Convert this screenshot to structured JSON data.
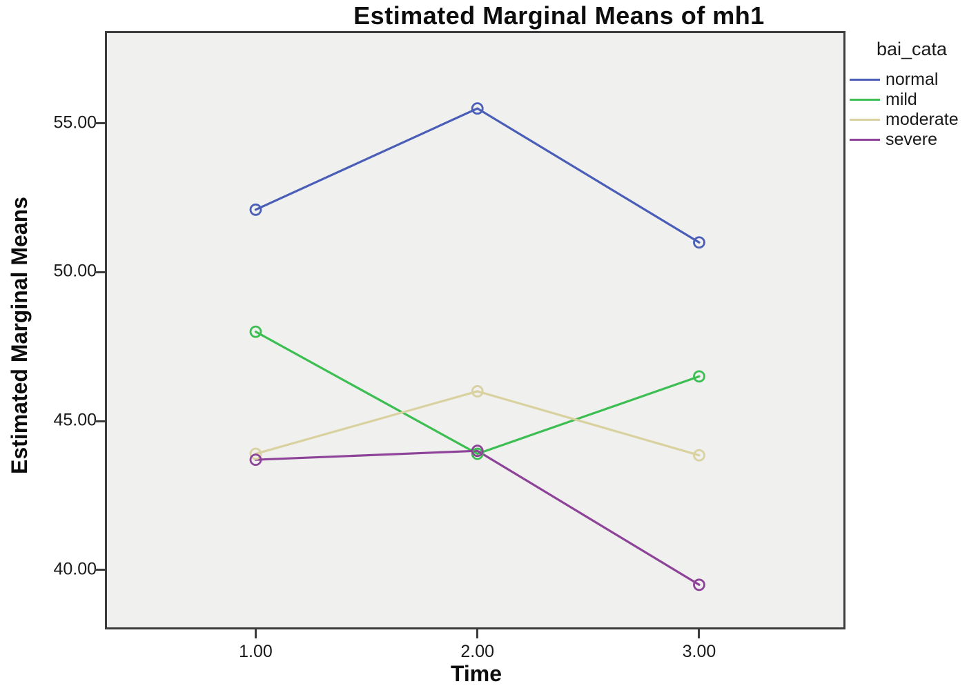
{
  "chart_data": {
    "type": "line",
    "title": "Estimated Marginal Means of mh1",
    "xlabel": "Time",
    "ylabel": "Estimated Marginal Means",
    "legend_title": "bai_cata",
    "legend_position": "right-top-outside",
    "grid": false,
    "marker": "open-circle",
    "x": [
      1.0,
      2.0,
      3.0
    ],
    "x_tick_labels": [
      "1.00",
      "2.00",
      "3.00"
    ],
    "y_ticks": [
      40,
      45,
      50,
      55
    ],
    "y_tick_labels": [
      "40.00",
      "45.00",
      "50.00",
      "55.00"
    ],
    "xlim": [
      0.32,
      3.66
    ],
    "ylim": [
      38.0,
      58.1
    ],
    "series": [
      {
        "name": "normal",
        "color": "#4a5eb8",
        "values": [
          52.1,
          55.5,
          51.0
        ]
      },
      {
        "name": "mild",
        "color": "#3dbe52",
        "values": [
          48.0,
          43.9,
          46.5
        ]
      },
      {
        "name": "moderate",
        "color": "#d9d2a0",
        "values": [
          43.9,
          46.0,
          43.85
        ]
      },
      {
        "name": "severe",
        "color": "#8d4398",
        "values": [
          43.7,
          44.0,
          39.5
        ]
      }
    ],
    "colors": {
      "plot_background": "#f0f0ee",
      "frame": "#3c3c3c",
      "text": "#111111",
      "page_background": "#ffffff"
    }
  }
}
